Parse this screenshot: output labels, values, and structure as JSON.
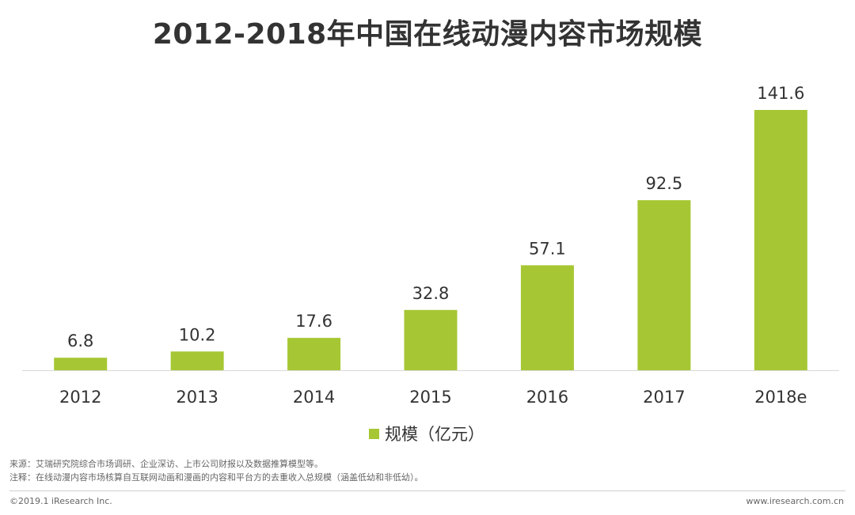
{
  "colors": {
    "bar": "#a6c733",
    "axis": "#d9d9d9",
    "text": "#333333"
  },
  "chart_data": {
    "type": "bar",
    "title": "2012-2018年中国在线动漫内容市场规模",
    "categories": [
      "2012",
      "2013",
      "2014",
      "2015",
      "2016",
      "2017",
      "2018e"
    ],
    "series": [
      {
        "name": "规模（亿元）",
        "values": [
          6.8,
          10.2,
          17.6,
          32.8,
          57.1,
          92.5,
          141.6
        ]
      }
    ],
    "value_labels": [
      "6.8",
      "10.2",
      "17.6",
      "32.8",
      "57.1",
      "92.5",
      "141.6"
    ],
    "ylim": [
      0,
      141.6
    ],
    "grid": false,
    "legend": "bottom-center",
    "xlabel": "",
    "ylabel": ""
  },
  "notes": {
    "source": "来源：艾瑞研究院综合市场调研、企业深访、上市公司财报以及数据推算模型等。",
    "remark": "注释：在线动漫内容市场核算自互联网动画和漫画的内容和平台方的去重收入总规模（涵盖低幼和非低幼）。"
  },
  "footer": {
    "copyright": "©2019.1 iResearch Inc.",
    "site": "www.iresearch.com.cn"
  }
}
